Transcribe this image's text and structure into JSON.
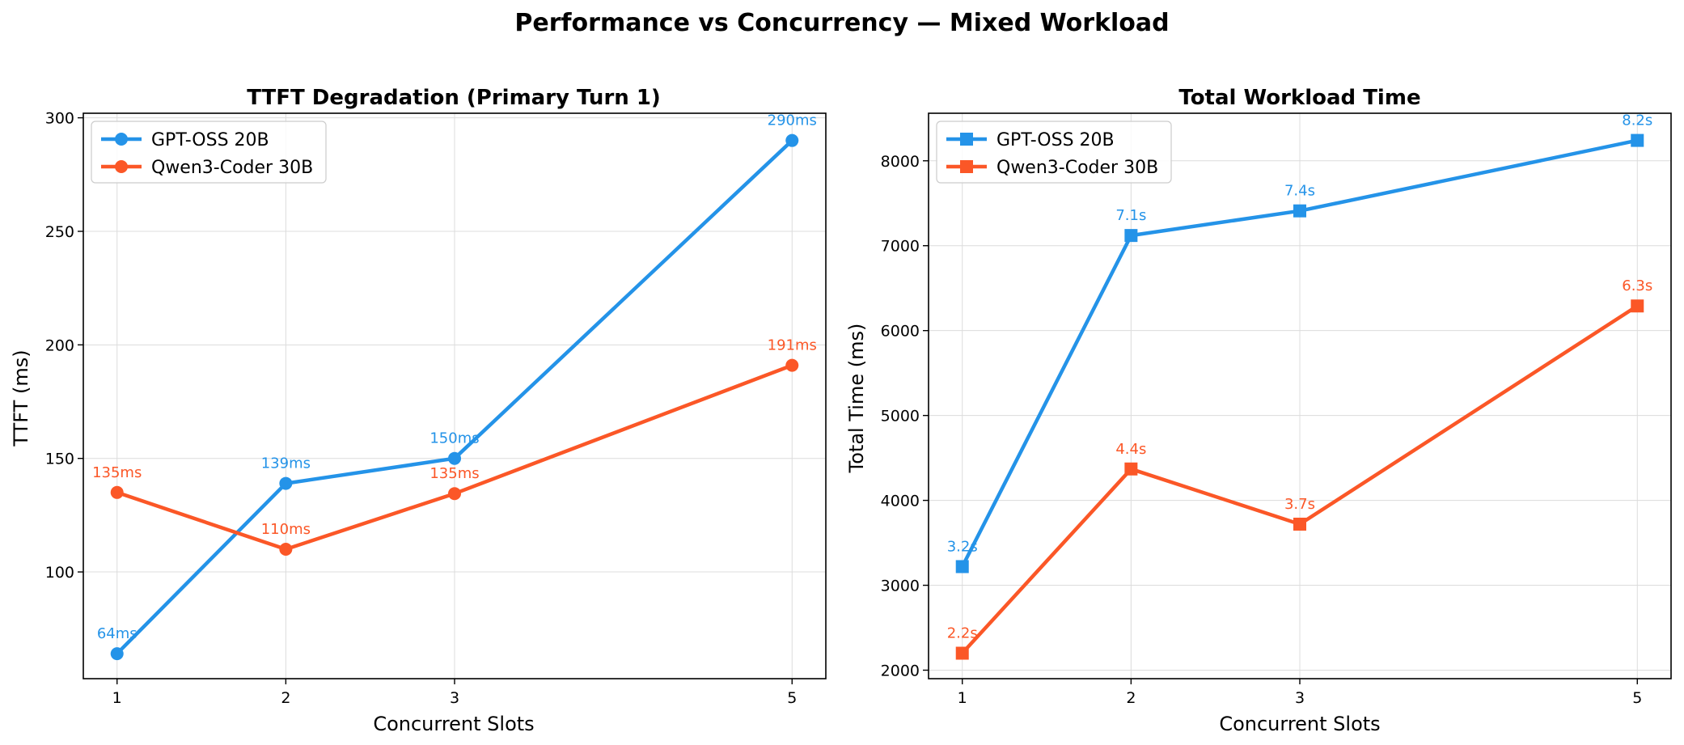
{
  "figure": {
    "suptitle": "Performance vs Concurrency — Mixed Workload"
  },
  "colors": {
    "gpt": "#2493e8",
    "qwen": "#fb5727"
  },
  "chart_data": [
    {
      "type": "line",
      "title": "TTFT Degradation (Primary Turn 1)",
      "xlabel": "Concurrent Slots",
      "ylabel": "TTFT (ms)",
      "x": [
        1,
        2,
        3,
        5
      ],
      "xticks": [
        "1",
        "2",
        "3",
        "5"
      ],
      "xlim": [
        0.8,
        5.2
      ],
      "ylim": [
        53,
        302
      ],
      "yticks": [
        "100",
        "150",
        "200",
        "250",
        "300"
      ],
      "grid": true,
      "legend": "top-left",
      "marker": "circle",
      "series": [
        {
          "name": "GPT-OSS 20B",
          "color_key": "gpt",
          "values": [
            64,
            139,
            150,
            290
          ],
          "labels": [
            "64ms",
            "139ms",
            "150ms",
            "290ms"
          ]
        },
        {
          "name": "Qwen3-Coder 30B",
          "color_key": "qwen",
          "values": [
            135,
            110,
            134.5,
            191
          ],
          "labels": [
            "135ms",
            "110ms",
            "135ms",
            "191ms"
          ]
        }
      ]
    },
    {
      "type": "line",
      "title": "Total Workload Time",
      "xlabel": "Concurrent Slots",
      "ylabel": "Total Time (ms)",
      "x": [
        1,
        2,
        3,
        5
      ],
      "xticks": [
        "1",
        "2",
        "3",
        "5"
      ],
      "xlim": [
        0.8,
        5.2
      ],
      "ylim": [
        1900,
        8560
      ],
      "yticks": [
        "2000",
        "3000",
        "4000",
        "5000",
        "6000",
        "7000",
        "8000"
      ],
      "grid": true,
      "legend": "top-left",
      "marker": "square",
      "series": [
        {
          "name": "GPT-OSS 20B",
          "color_key": "gpt",
          "values": [
            3220,
            7120,
            7410,
            8240
          ],
          "labels": [
            "3.2s",
            "7.1s",
            "7.4s",
            "8.2s"
          ]
        },
        {
          "name": "Qwen3-Coder 30B",
          "color_key": "qwen",
          "values": [
            2200,
            4370,
            3720,
            6290
          ],
          "labels": [
            "2.2s",
            "4.4s",
            "3.7s",
            "6.3s"
          ]
        }
      ]
    }
  ]
}
